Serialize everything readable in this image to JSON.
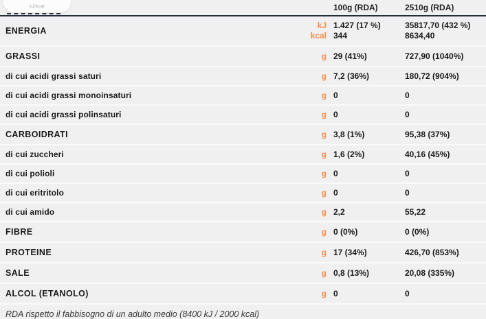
{
  "colors": {
    "accent": "#f78e4d",
    "header_line": "#232e3a",
    "background": "#f0f0f1"
  },
  "artifact": {
    "tooltip_text": "kJ/kcal"
  },
  "header": {
    "col1": "100g (RDA)",
    "col2": "2510g (RDA)"
  },
  "rows": [
    {
      "label": "ENERGIA",
      "type": "main",
      "units": [
        "kJ",
        "kcal"
      ],
      "col1": [
        "1.427 (17 %)",
        "344"
      ],
      "col2": [
        "35817,70 (432 %)",
        "8634,40"
      ]
    },
    {
      "label": "GRASSI",
      "type": "main",
      "unit": "g",
      "col1": "29 (41%)",
      "col2": "727,90 (1040%)"
    },
    {
      "label": "di cui acidi grassi saturi",
      "type": "sub",
      "unit": "g",
      "col1": "7,2 (36%)",
      "col2": "180,72 (904%)"
    },
    {
      "label": "di cui acidi grassi monoinsaturi",
      "type": "sub",
      "unit": "g",
      "col1": "0",
      "col2": "0"
    },
    {
      "label": "di cui acidi grassi polinsaturi",
      "type": "sub",
      "unit": "g",
      "col1": "0",
      "col2": "0"
    },
    {
      "label": "CARBOIDRATI",
      "type": "main",
      "unit": "g",
      "col1": "3,8 (1%)",
      "col2": "95,38 (37%)"
    },
    {
      "label": "di cui zuccheri",
      "type": "sub",
      "unit": "g",
      "col1": "1,6 (2%)",
      "col2": "40,16 (45%)"
    },
    {
      "label": "di cui polioli",
      "type": "sub",
      "unit": "g",
      "col1": "0",
      "col2": "0"
    },
    {
      "label": "di cui eritritolo",
      "type": "sub",
      "unit": "g",
      "col1": "0",
      "col2": "0"
    },
    {
      "label": "di cui amido",
      "type": "sub",
      "unit": "g",
      "col1": "2,2",
      "col2": "55,22"
    },
    {
      "label": "FIBRE",
      "type": "main",
      "unit": "g",
      "col1": "0 (0%)",
      "col2": "0 (0%)"
    },
    {
      "label": "PROTEINE",
      "type": "main",
      "unit": "g",
      "col1": "17 (34%)",
      "col2": "426,70 (853%)"
    },
    {
      "label": "SALE",
      "type": "main",
      "unit": "g",
      "col1": "0,8 (13%)",
      "col2": "20,08 (335%)"
    },
    {
      "label": "ALCOL (ETANOLO)",
      "type": "main",
      "unit": "g",
      "col1": "0",
      "col2": "0"
    }
  ],
  "footer": {
    "note": "RDA rispetto il fabbisogno di un adulto medio (8400 kJ / 2000 kcal)"
  }
}
